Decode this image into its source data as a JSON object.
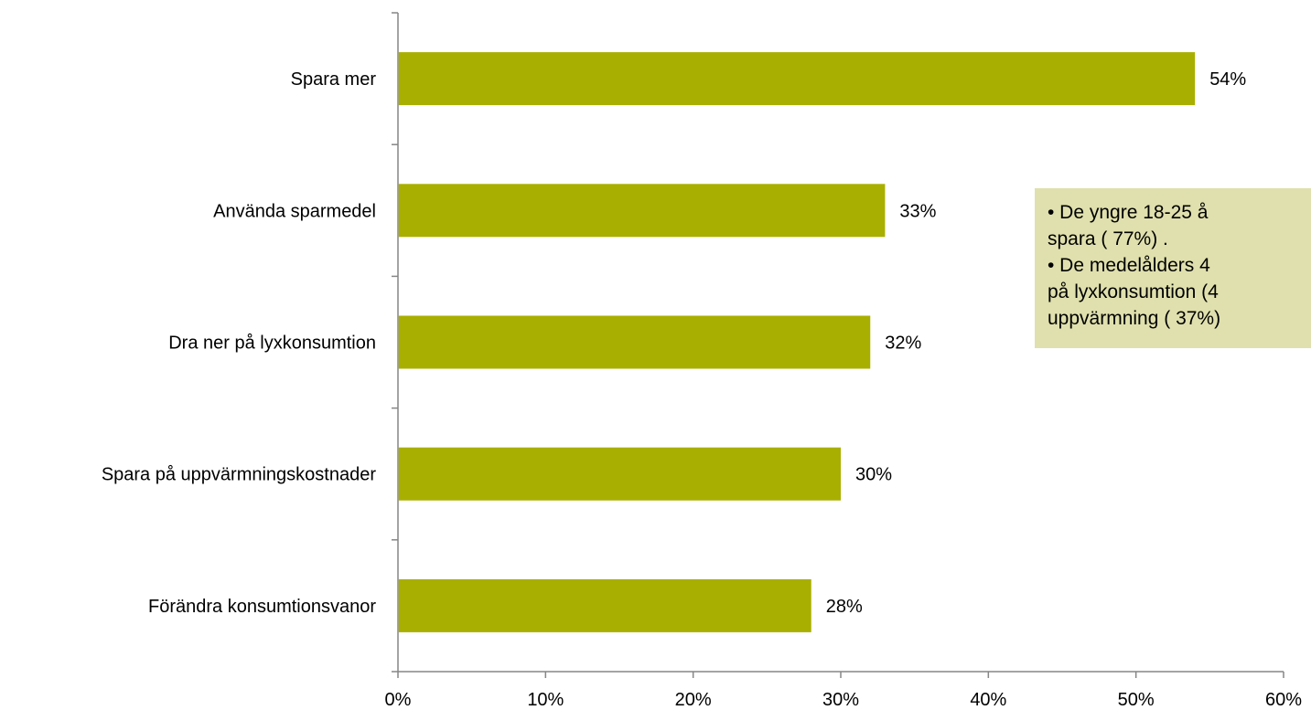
{
  "chart_data": {
    "type": "bar",
    "orientation": "horizontal",
    "categories": [
      "Spara mer",
      "Använda sparmedel",
      "Dra ner på lyxkonsumtion",
      "Spara på uppvärmningskostnader",
      "Förändra konsumtionsvanor"
    ],
    "values": [
      54,
      33,
      32,
      30,
      28
    ],
    "value_labels": [
      "54%",
      "33%",
      "32%",
      "30%",
      "28%"
    ],
    "xlim": [
      0,
      60
    ],
    "x_ticks": [
      0,
      10,
      20,
      30,
      40,
      50,
      60
    ],
    "x_tick_labels": [
      "0%",
      "10%",
      "20%",
      "30%",
      "40%",
      "50%",
      "60%"
    ],
    "bar_color": "#a9af00",
    "grid": false,
    "legend": "none"
  },
  "callout": {
    "lines": [
      "•  De yngre 18-25 å",
      "spara ( 77%) .",
      "•  De medelålders 4",
      "på lyxkonsumtion (4",
      "uppvärmning ( 37%)"
    ],
    "background": "#dfe0ad"
  }
}
